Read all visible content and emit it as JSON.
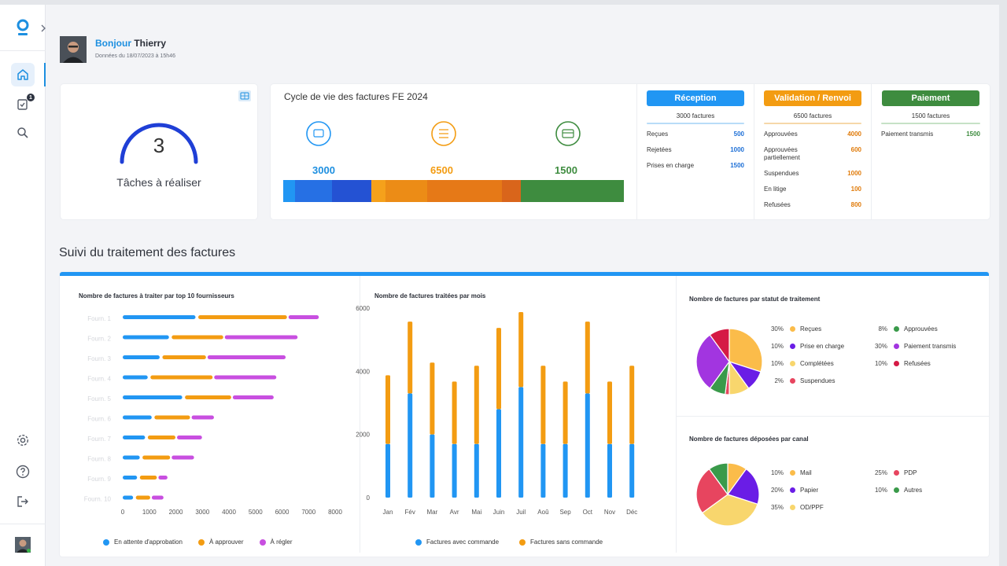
{
  "header": {
    "greeting": "Bonjour",
    "user_name": "Thierry",
    "subtitle": "Données du 18/07/2023 à 15h46"
  },
  "sidebar": {
    "badge_count": "1"
  },
  "tasks": {
    "count": "3",
    "label": "Tâches à réaliser"
  },
  "lifecycle": {
    "title": "Cycle de vie des factures FE 2024",
    "step1_value": "3000",
    "step2_value": "6500",
    "step3_value": "1500"
  },
  "reception": {
    "title": "Réception",
    "total": "3000 factures",
    "rows": [
      {
        "label": "Reçues",
        "value": "500"
      },
      {
        "label": "Rejetées",
        "value": "1000"
      },
      {
        "label": "Prises en charge",
        "value": "1500"
      }
    ]
  },
  "validation": {
    "title": "Validation / Renvoi",
    "total": "6500 factures",
    "rows": [
      {
        "label": "Approuvées",
        "value": "4000"
      },
      {
        "label": "Approuvées partiellement",
        "value": "600"
      },
      {
        "label": "Suspendues",
        "value": "1000"
      },
      {
        "label": "En litige",
        "value": "100"
      },
      {
        "label": "Refusées",
        "value": "800"
      }
    ]
  },
  "paiement": {
    "title": "Paiement",
    "total": "1500 factures",
    "rows": [
      {
        "label": "Paiement transmis",
        "value": "1500"
      }
    ]
  },
  "section_title": "Suivi du traitement des factures",
  "colors": {
    "blue": "#2196f3",
    "orange": "#f39c12",
    "green": "#3e8c3f",
    "purple": "#c84fe0"
  },
  "chart_data": [
    {
      "type": "bar",
      "orientation": "horizontal",
      "stacked": true,
      "title": "Nombre de factures à traiter par top 10 fournisseurs",
      "categories": [
        "Fourn. 1",
        "Fourn. 2",
        "Fourn. 3",
        "Fourn. 4",
        "Fourn. 5",
        "Fourn. 6",
        "Fourn. 7",
        "Fourn. 8",
        "Fourn. 9",
        "Fourn. 10"
      ],
      "series": [
        {
          "name": "En attente d'approbation",
          "values": [
            2800,
            1800,
            1450,
            1000,
            2300,
            1150,
            900,
            700,
            600,
            450
          ]
        },
        {
          "name": "À approuver",
          "values": [
            3400,
            2000,
            1700,
            2400,
            1800,
            1400,
            1100,
            1100,
            700,
            600
          ]
        },
        {
          "name": "À régler",
          "values": [
            1200,
            2800,
            3000,
            2400,
            1600,
            900,
            1000,
            900,
            400,
            500
          ]
        }
      ],
      "xticks": [
        "0",
        "1000",
        "2000",
        "3000",
        "4000",
        "5000",
        "6000",
        "7000",
        "8000"
      ],
      "xlim": [
        0,
        8000
      ]
    },
    {
      "type": "bar",
      "stacked": true,
      "title": "Nombre de factures traitées par mois",
      "categories": [
        "Jan",
        "Fév",
        "Mar",
        "Avr",
        "Mai",
        "Juin",
        "Juil",
        "Aoû",
        "Sep",
        "Oct",
        "Nov",
        "Déc"
      ],
      "series": [
        {
          "name": "Factures avec commande",
          "values": [
            1700,
            3300,
            2000,
            1700,
            1700,
            2800,
            3500,
            1700,
            1700,
            3300,
            1700,
            1700
          ]
        },
        {
          "name": "Factures sans commande",
          "values": [
            2200,
            2300,
            2300,
            2000,
            2500,
            2600,
            2400,
            2500,
            2000,
            2300,
            2000,
            2500
          ]
        }
      ],
      "yticks": [
        "0",
        "2000",
        "4000",
        "6000"
      ],
      "ylim": [
        0,
        6000
      ]
    },
    {
      "type": "pie",
      "title": "Nombre de factures par statut de traitement",
      "labels": [
        "Reçues",
        "Prise en charge",
        "Complétées",
        "Suspendues",
        "Approuvées",
        "Paiement transmis",
        "Refusées"
      ],
      "values": [
        30,
        10,
        10,
        2,
        8,
        30,
        10
      ],
      "pct_labels": [
        "30%",
        "10%",
        "10%",
        "2%",
        "8%",
        "30%",
        "10%"
      ],
      "colors": [
        "#fbbc4a",
        "#6a1de6",
        "#f8d66d",
        "#e7455f",
        "#3a9a4a",
        "#a235e0",
        "#d51a45"
      ]
    },
    {
      "type": "pie",
      "title": "Nombre de factures déposées par canal",
      "labels": [
        "Mail",
        "Papier",
        "OD/PPF",
        "PDP",
        "Autres"
      ],
      "values": [
        10,
        20,
        35,
        25,
        10
      ],
      "pct_labels": [
        "10%",
        "20%",
        "35%",
        "25%",
        "10%"
      ],
      "colors": [
        "#fbbc4a",
        "#6a1de6",
        "#f8d66d",
        "#e7455f",
        "#3a9a4a"
      ]
    }
  ]
}
